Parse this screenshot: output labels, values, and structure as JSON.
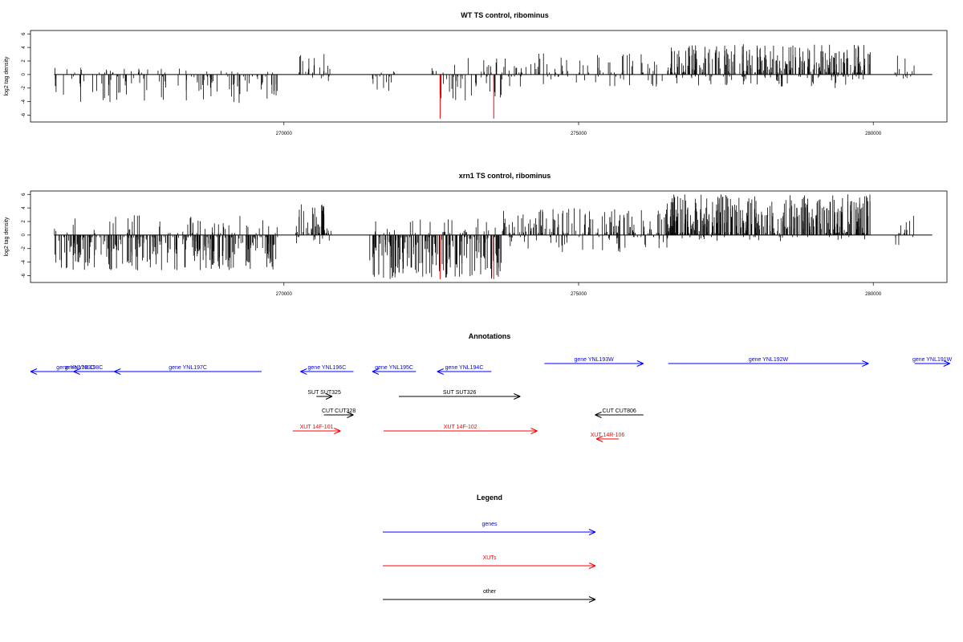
{
  "chart_data": [
    {
      "type": "bar",
      "title": "WT TS control, ribominus",
      "ylabel": "log2 tag density",
      "xlim": [
        265700,
        281250
      ],
      "ylim": [
        -7,
        6.5
      ],
      "x_ticks": [
        270000,
        275000,
        280000
      ],
      "y_ticks": [
        -6,
        -4,
        -2,
        0,
        2,
        4,
        6
      ],
      "x_tick_labels": [
        "270000",
        "275000",
        "280000"
      ],
      "y_tick_labels": [
        "-6",
        "-4",
        "-2",
        "0",
        "2",
        "4",
        "6"
      ],
      "baseline": [
        266100,
        281000
      ],
      "segments": [
        {
          "from": 266100,
          "to": 269900,
          "min": -4.2,
          "max": 1,
          "density": 0.45,
          "bias": -1.5
        },
        {
          "from": 270250,
          "to": 270800,
          "min": -1,
          "max": 3.2,
          "density": 0.6,
          "bias": 1.5
        },
        {
          "from": 271500,
          "to": 271900,
          "min": -3.5,
          "max": 0.5,
          "density": 0.45,
          "bias": -1.5
        },
        {
          "from": 272500,
          "to": 273700,
          "min": -4.0,
          "max": 2.5,
          "density": 0.55,
          "bias": -0.8
        },
        {
          "from": 273700,
          "to": 276500,
          "min": -2.0,
          "max": 3.2,
          "density": 0.45,
          "bias": 1.0
        },
        {
          "from": 276500,
          "to": 279950,
          "min": -2.0,
          "max": 4.5,
          "density": 1.3,
          "bias": 2.0
        },
        {
          "from": 280350,
          "to": 280700,
          "min": -1.0,
          "max": 2.8,
          "density": 0.5,
          "bias": 1.0
        }
      ],
      "highlights": [
        {
          "x": 272650,
          "y": -6.5,
          "color": "#ff0000"
        },
        {
          "x": 273560,
          "y": -6.5,
          "color": "#ff0000"
        }
      ]
    },
    {
      "type": "bar",
      "title": "xrn1 TS control, ribominus",
      "ylabel": "log2 tag density",
      "xlim": [
        265700,
        281250
      ],
      "ylim": [
        -7,
        6.5
      ],
      "x_ticks": [
        270000,
        275000,
        280000
      ],
      "y_ticks": [
        -6,
        -4,
        -2,
        0,
        2,
        4,
        6
      ],
      "x_tick_labels": [
        "270000",
        "275000",
        "280000"
      ],
      "y_tick_labels": [
        "-6",
        "-4",
        "-2",
        "0",
        "2",
        "4",
        "6"
      ],
      "baseline": [
        266100,
        281000
      ],
      "segments": [
        {
          "from": 266100,
          "to": 269900,
          "min": -5.2,
          "max": 3.0,
          "density": 1.2,
          "bias": -2.0
        },
        {
          "from": 270200,
          "to": 270800,
          "min": -1.5,
          "max": 4.6,
          "density": 1.2,
          "bias": 2.0
        },
        {
          "from": 271450,
          "to": 273700,
          "min": -6.5,
          "max": 2.5,
          "density": 1.3,
          "bias": -2.2
        },
        {
          "from": 273700,
          "to": 276500,
          "min": -2.5,
          "max": 4.0,
          "density": 0.9,
          "bias": 1.2
        },
        {
          "from": 276500,
          "to": 279950,
          "min": -1.0,
          "max": 6.0,
          "density": 1.5,
          "bias": 2.5
        },
        {
          "from": 280350,
          "to": 280700,
          "min": -1.5,
          "max": 3.5,
          "density": 0.5,
          "bias": 1.0
        }
      ],
      "highlights": [
        {
          "x": 272650,
          "y": -6.5,
          "color": "#ff0000"
        },
        {
          "x": 273560,
          "y": -6.5,
          "color": "#ff0000"
        }
      ]
    }
  ],
  "annotations": {
    "title": "Annotations",
    "colors": {
      "genes": "#0000ff",
      "XUTs": "#ff0000",
      "other": "#000000"
    },
    "features": [
      {
        "label": "gene YNL199C",
        "type": "genes",
        "strand": "-",
        "start": 265700,
        "end": 267230,
        "row": 0
      },
      {
        "label": "gene YNL198C",
        "type": "genes",
        "strand": "-",
        "start": 266430,
        "end": 266780,
        "row": 0
      },
      {
        "label": "gene YNL197C",
        "type": "genes",
        "strand": "-",
        "start": 267120,
        "end": 269620,
        "row": 0
      },
      {
        "label": "gene YNL196C",
        "type": "genes",
        "strand": "-",
        "start": 270280,
        "end": 271180,
        "row": 0
      },
      {
        "label": "gene YNL195C",
        "type": "genes",
        "strand": "-",
        "start": 271500,
        "end": 272240,
        "row": 0
      },
      {
        "label": "gene YNL194C",
        "type": "genes",
        "strand": "-",
        "start": 272600,
        "end": 273520,
        "row": 0
      },
      {
        "label": "gene YNL193W",
        "type": "genes",
        "strand": "+",
        "start": 274420,
        "end": 276100,
        "row": 1
      },
      {
        "label": "gene YNL192W",
        "type": "genes",
        "strand": "+",
        "start": 276520,
        "end": 279920,
        "row": 1
      },
      {
        "label": "gene YNL191W",
        "type": "genes",
        "strand": "+",
        "start": 280700,
        "end": 281300,
        "row": 1
      },
      {
        "label": "SUT SUT325",
        "type": "other",
        "strand": "+",
        "start": 270550,
        "end": 270820,
        "row": 2
      },
      {
        "label": "SUT SUT326",
        "type": "other",
        "strand": "+",
        "start": 271950,
        "end": 274010,
        "row": 2
      },
      {
        "label": "CUT CUT328",
        "type": "other",
        "strand": "+",
        "start": 270680,
        "end": 271180,
        "row": 3
      },
      {
        "label": "CUT CUT806",
        "type": "other",
        "strand": "-",
        "start": 275280,
        "end": 276100,
        "row": 3
      },
      {
        "label": "XUT 14F-101",
        "type": "XUTs",
        "strand": "+",
        "start": 270150,
        "end": 270960,
        "row": 4
      },
      {
        "label": "XUT 14F-102",
        "type": "XUTs",
        "strand": "+",
        "start": 271690,
        "end": 274300,
        "row": 4
      },
      {
        "label": "XUT 14R-106",
        "type": "XUTs",
        "strand": "-",
        "start": 275300,
        "end": 275680,
        "row": 5
      }
    ]
  },
  "legend": {
    "title": "Legend",
    "entries": [
      {
        "label": "genes",
        "color": "#0000ff"
      },
      {
        "label": "XUTs",
        "color": "#ff0000"
      },
      {
        "label": "other",
        "color": "#000000"
      }
    ]
  }
}
